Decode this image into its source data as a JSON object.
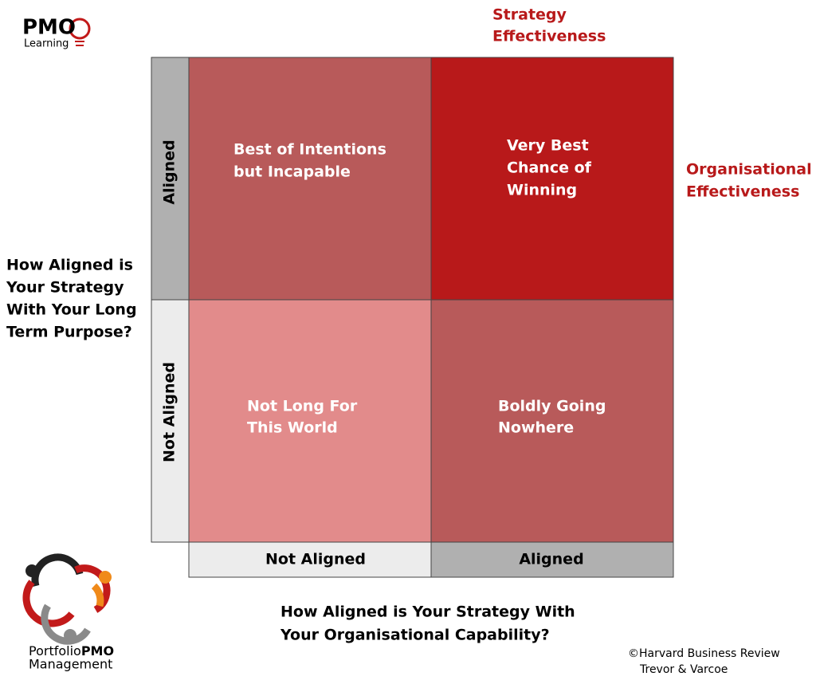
{
  "logos": {
    "pmo_learning": {
      "name": "PMO",
      "sub": "Learning"
    },
    "portfolio": {
      "light": "Portfolio",
      "bold": "PMO",
      "sub": "Management"
    }
  },
  "top_axis_title": [
    "Strategy",
    "Effectiveness"
  ],
  "right_axis_title": [
    "Organisational",
    "Effectiveness"
  ],
  "y_axis_title": [
    "How Aligned is",
    "Your Strategy",
    "With Your Long",
    "Term Purpose?"
  ],
  "x_axis_title": [
    "How Aligned is Your Strategy With",
    "Your Organisational Capability?"
  ],
  "row_labels": [
    "Aligned",
    "Not Aligned"
  ],
  "column_labels": [
    "Not Aligned",
    "Aligned"
  ],
  "cells": [
    {
      "lines": [
        "Best of Intentions",
        "but Incapable"
      ]
    },
    {
      "lines": [
        "Very Best",
        "Chance of",
        "Winning"
      ]
    },
    {
      "lines": [
        "Not Long For",
        "This World"
      ]
    },
    {
      "lines": [
        "Boldly Going",
        "Nowhere"
      ]
    }
  ],
  "credit": [
    "©Harvard Business Review",
    "Trevor & Varcoe"
  ]
}
